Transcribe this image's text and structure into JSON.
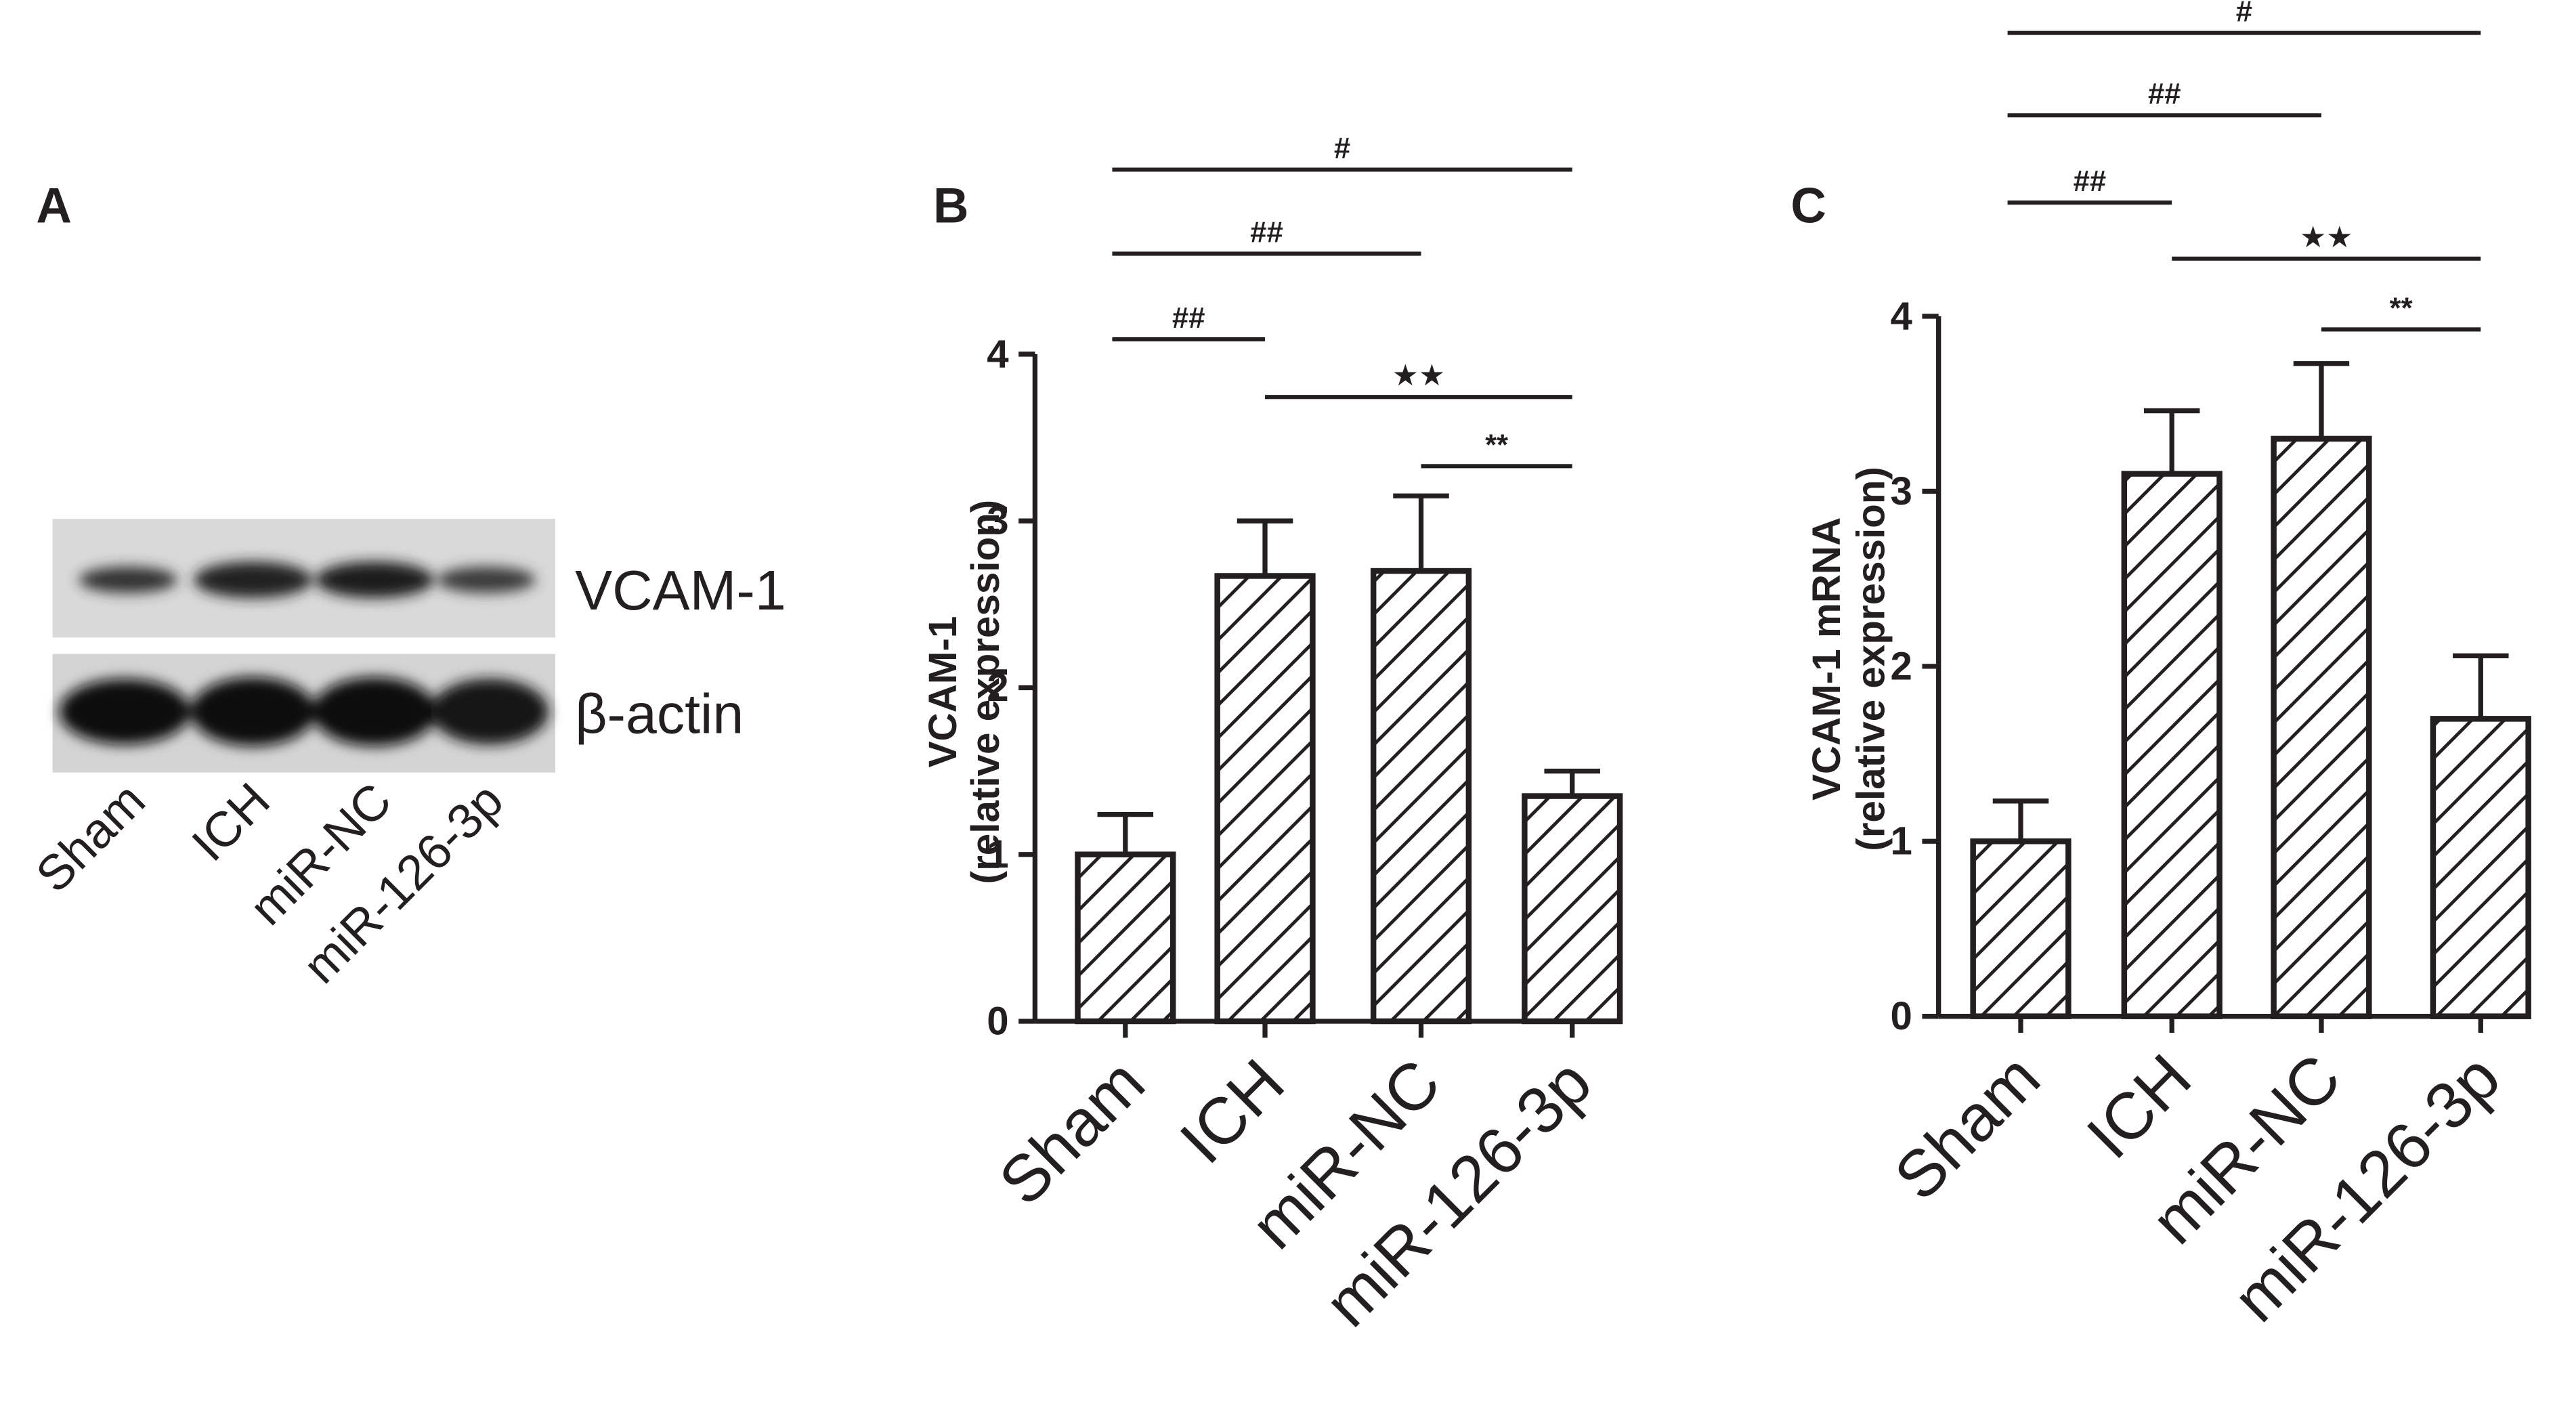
{
  "blot": {
    "panel_label": "A",
    "rows": [
      "VCAM-1",
      "β-actin"
    ],
    "lanes": [
      "Sham",
      "ICH",
      "miR-NC",
      "miR-126-3p"
    ]
  },
  "chart_data": [
    {
      "type": "bar",
      "panel_label": "B",
      "y_label": [
        "VCAM-1",
        "(relative expression)"
      ],
      "categories": [
        "Sham",
        "ICH",
        "miR-NC",
        "miR-126-3p"
      ],
      "values": [
        1.0,
        2.67,
        2.7,
        1.35
      ],
      "errors": [
        0.24,
        0.33,
        0.45,
        0.15
      ],
      "color": "#ffffff",
      "edge_color": "#231f20",
      "hatch": true,
      "ylim": [
        0,
        4
      ],
      "yticks": [
        0,
        1,
        2,
        3,
        4
      ],
      "annotations": [
        {
          "label": "**",
          "from": 2,
          "to": 3
        },
        {
          "label": "★★",
          "from": 1,
          "to": 3
        },
        {
          "label": "##",
          "from": 0,
          "to": 1
        },
        {
          "label": "##",
          "from": 0,
          "to": 2
        },
        {
          "label": "#",
          "from": 0,
          "to": 3
        }
      ]
    },
    {
      "type": "bar",
      "panel_label": "C",
      "y_label": [
        "VCAM-1 mRNA",
        "(relative expression)"
      ],
      "categories": [
        "Sham",
        "ICH",
        "miR-NC",
        "miR-126-3p"
      ],
      "values": [
        1.0,
        3.1,
        3.3,
        1.7
      ],
      "errors": [
        0.23,
        0.36,
        0.43,
        0.36
      ],
      "color": "#ffffff",
      "edge_color": "#231f20",
      "hatch": true,
      "ylim": [
        0,
        4
      ],
      "yticks": [
        0,
        1,
        2,
        3,
        4
      ],
      "annotations": [
        {
          "label": "**",
          "from": 2,
          "to": 3
        },
        {
          "label": "★★",
          "from": 1,
          "to": 3
        },
        {
          "label": "##",
          "from": 0,
          "to": 1
        },
        {
          "label": "##",
          "from": 0,
          "to": 2
        },
        {
          "label": "#",
          "from": 0,
          "to": 3
        }
      ]
    }
  ]
}
